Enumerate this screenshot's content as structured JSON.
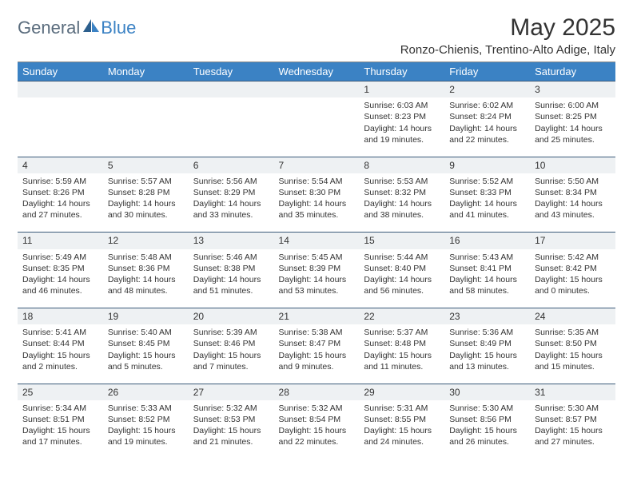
{
  "brand": {
    "general": "General",
    "blue": "Blue"
  },
  "title": "May 2025",
  "location": "Ronzo-Chienis, Trentino-Alto Adige, Italy",
  "header_bg": "#3b82c4",
  "header_fg": "#ffffff",
  "daynum_bg": "#eef1f3",
  "daynum_border": "#3b5a7a",
  "weekdays": [
    "Sunday",
    "Monday",
    "Tuesday",
    "Wednesday",
    "Thursday",
    "Friday",
    "Saturday"
  ],
  "weeks": [
    {
      "nums": [
        "",
        "",
        "",
        "",
        "1",
        "2",
        "3"
      ],
      "cells": [
        null,
        null,
        null,
        null,
        {
          "sr": "Sunrise: 6:03 AM",
          "ss": "Sunset: 8:23 PM",
          "d1": "Daylight: 14 hours",
          "d2": "and 19 minutes."
        },
        {
          "sr": "Sunrise: 6:02 AM",
          "ss": "Sunset: 8:24 PM",
          "d1": "Daylight: 14 hours",
          "d2": "and 22 minutes."
        },
        {
          "sr": "Sunrise: 6:00 AM",
          "ss": "Sunset: 8:25 PM",
          "d1": "Daylight: 14 hours",
          "d2": "and 25 minutes."
        }
      ]
    },
    {
      "nums": [
        "4",
        "5",
        "6",
        "7",
        "8",
        "9",
        "10"
      ],
      "cells": [
        {
          "sr": "Sunrise: 5:59 AM",
          "ss": "Sunset: 8:26 PM",
          "d1": "Daylight: 14 hours",
          "d2": "and 27 minutes."
        },
        {
          "sr": "Sunrise: 5:57 AM",
          "ss": "Sunset: 8:28 PM",
          "d1": "Daylight: 14 hours",
          "d2": "and 30 minutes."
        },
        {
          "sr": "Sunrise: 5:56 AM",
          "ss": "Sunset: 8:29 PM",
          "d1": "Daylight: 14 hours",
          "d2": "and 33 minutes."
        },
        {
          "sr": "Sunrise: 5:54 AM",
          "ss": "Sunset: 8:30 PM",
          "d1": "Daylight: 14 hours",
          "d2": "and 35 minutes."
        },
        {
          "sr": "Sunrise: 5:53 AM",
          "ss": "Sunset: 8:32 PM",
          "d1": "Daylight: 14 hours",
          "d2": "and 38 minutes."
        },
        {
          "sr": "Sunrise: 5:52 AM",
          "ss": "Sunset: 8:33 PM",
          "d1": "Daylight: 14 hours",
          "d2": "and 41 minutes."
        },
        {
          "sr": "Sunrise: 5:50 AM",
          "ss": "Sunset: 8:34 PM",
          "d1": "Daylight: 14 hours",
          "d2": "and 43 minutes."
        }
      ]
    },
    {
      "nums": [
        "11",
        "12",
        "13",
        "14",
        "15",
        "16",
        "17"
      ],
      "cells": [
        {
          "sr": "Sunrise: 5:49 AM",
          "ss": "Sunset: 8:35 PM",
          "d1": "Daylight: 14 hours",
          "d2": "and 46 minutes."
        },
        {
          "sr": "Sunrise: 5:48 AM",
          "ss": "Sunset: 8:36 PM",
          "d1": "Daylight: 14 hours",
          "d2": "and 48 minutes."
        },
        {
          "sr": "Sunrise: 5:46 AM",
          "ss": "Sunset: 8:38 PM",
          "d1": "Daylight: 14 hours",
          "d2": "and 51 minutes."
        },
        {
          "sr": "Sunrise: 5:45 AM",
          "ss": "Sunset: 8:39 PM",
          "d1": "Daylight: 14 hours",
          "d2": "and 53 minutes."
        },
        {
          "sr": "Sunrise: 5:44 AM",
          "ss": "Sunset: 8:40 PM",
          "d1": "Daylight: 14 hours",
          "d2": "and 56 minutes."
        },
        {
          "sr": "Sunrise: 5:43 AM",
          "ss": "Sunset: 8:41 PM",
          "d1": "Daylight: 14 hours",
          "d2": "and 58 minutes."
        },
        {
          "sr": "Sunrise: 5:42 AM",
          "ss": "Sunset: 8:42 PM",
          "d1": "Daylight: 15 hours",
          "d2": "and 0 minutes."
        }
      ]
    },
    {
      "nums": [
        "18",
        "19",
        "20",
        "21",
        "22",
        "23",
        "24"
      ],
      "cells": [
        {
          "sr": "Sunrise: 5:41 AM",
          "ss": "Sunset: 8:44 PM",
          "d1": "Daylight: 15 hours",
          "d2": "and 2 minutes."
        },
        {
          "sr": "Sunrise: 5:40 AM",
          "ss": "Sunset: 8:45 PM",
          "d1": "Daylight: 15 hours",
          "d2": "and 5 minutes."
        },
        {
          "sr": "Sunrise: 5:39 AM",
          "ss": "Sunset: 8:46 PM",
          "d1": "Daylight: 15 hours",
          "d2": "and 7 minutes."
        },
        {
          "sr": "Sunrise: 5:38 AM",
          "ss": "Sunset: 8:47 PM",
          "d1": "Daylight: 15 hours",
          "d2": "and 9 minutes."
        },
        {
          "sr": "Sunrise: 5:37 AM",
          "ss": "Sunset: 8:48 PM",
          "d1": "Daylight: 15 hours",
          "d2": "and 11 minutes."
        },
        {
          "sr": "Sunrise: 5:36 AM",
          "ss": "Sunset: 8:49 PM",
          "d1": "Daylight: 15 hours",
          "d2": "and 13 minutes."
        },
        {
          "sr": "Sunrise: 5:35 AM",
          "ss": "Sunset: 8:50 PM",
          "d1": "Daylight: 15 hours",
          "d2": "and 15 minutes."
        }
      ]
    },
    {
      "nums": [
        "25",
        "26",
        "27",
        "28",
        "29",
        "30",
        "31"
      ],
      "cells": [
        {
          "sr": "Sunrise: 5:34 AM",
          "ss": "Sunset: 8:51 PM",
          "d1": "Daylight: 15 hours",
          "d2": "and 17 minutes."
        },
        {
          "sr": "Sunrise: 5:33 AM",
          "ss": "Sunset: 8:52 PM",
          "d1": "Daylight: 15 hours",
          "d2": "and 19 minutes."
        },
        {
          "sr": "Sunrise: 5:32 AM",
          "ss": "Sunset: 8:53 PM",
          "d1": "Daylight: 15 hours",
          "d2": "and 21 minutes."
        },
        {
          "sr": "Sunrise: 5:32 AM",
          "ss": "Sunset: 8:54 PM",
          "d1": "Daylight: 15 hours",
          "d2": "and 22 minutes."
        },
        {
          "sr": "Sunrise: 5:31 AM",
          "ss": "Sunset: 8:55 PM",
          "d1": "Daylight: 15 hours",
          "d2": "and 24 minutes."
        },
        {
          "sr": "Sunrise: 5:30 AM",
          "ss": "Sunset: 8:56 PM",
          "d1": "Daylight: 15 hours",
          "d2": "and 26 minutes."
        },
        {
          "sr": "Sunrise: 5:30 AM",
          "ss": "Sunset: 8:57 PM",
          "d1": "Daylight: 15 hours",
          "d2": "and 27 minutes."
        }
      ]
    }
  ]
}
